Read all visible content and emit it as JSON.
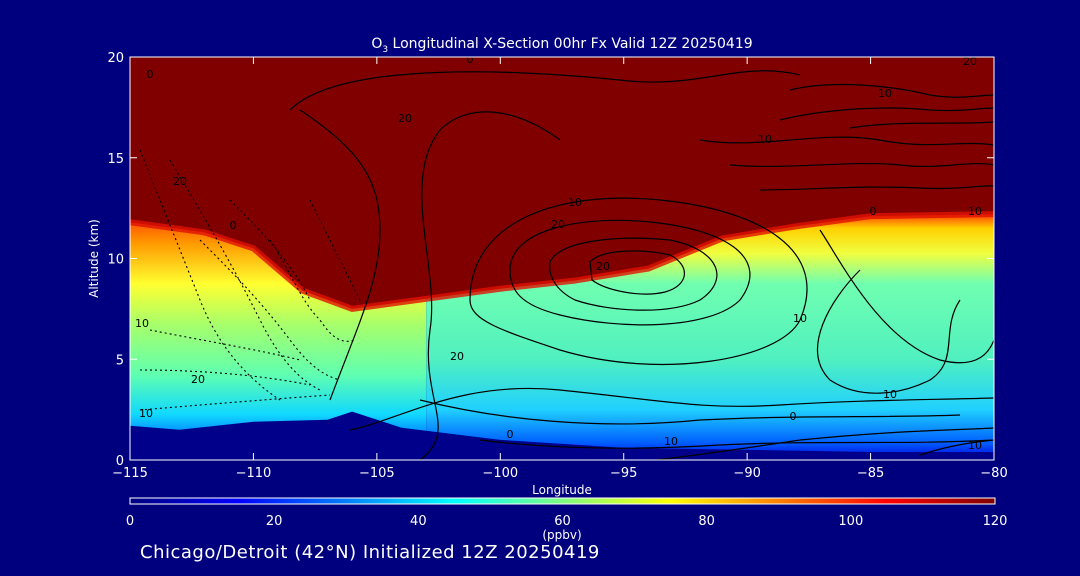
{
  "chart_data": {
    "type": "heatmap",
    "title_prefix": "O",
    "title_subscript": "3",
    "title_rest": " Longitudinal X-Section 00hr  Fx Valid 12Z 20250419",
    "xlabel": "Longitude",
    "ylabel": "Altitude (km)",
    "xlim": [
      -115,
      -80
    ],
    "ylim": [
      0,
      20
    ],
    "x_ticks": [
      -115,
      -110,
      -105,
      -100,
      -95,
      -90,
      -85,
      -80
    ],
    "x_tick_labels": [
      "−115",
      "−110",
      "−105",
      "−100",
      "−95",
      "−90",
      "−85",
      "−80"
    ],
    "y_ticks": [
      0,
      5,
      10,
      15,
      20
    ],
    "y_tick_labels": [
      "0",
      "5",
      "10",
      "15",
      "20"
    ],
    "colorbar": {
      "min": 0,
      "max": 120,
      "ticks": [
        0,
        20,
        40,
        60,
        80,
        100,
        120
      ],
      "tick_labels": [
        "0",
        "20",
        "40",
        "60",
        "80",
        "100",
        "120"
      ],
      "label": "(ppbv)",
      "colors": [
        "#00007f",
        "#0000ff",
        "#0080ff",
        "#00ffff",
        "#80ff80",
        "#ffff00",
        "#ff8000",
        "#ff0000",
        "#7f0000"
      ]
    },
    "field": {
      "surface_km": [
        [
          -115,
          1.7
        ],
        [
          -113,
          1.5
        ],
        [
          -110,
          1.9
        ],
        [
          -107,
          2.0
        ],
        [
          -106,
          2.4
        ],
        [
          -104,
          1.6
        ],
        [
          -100,
          1.0
        ],
        [
          -95,
          0.6
        ],
        [
          -90,
          0.5
        ],
        [
          -85,
          0.4
        ],
        [
          -80,
          0.4
        ]
      ],
      "high_ozone_base_km": [
        [
          -115,
          11.8
        ],
        [
          -112,
          11.3
        ],
        [
          -110,
          10.5
        ],
        [
          -108,
          8.4
        ],
        [
          -106,
          7.5
        ],
        [
          -103,
          8.0
        ],
        [
          -100,
          8.5
        ],
        [
          -97,
          8.9
        ],
        [
          -94,
          9.5
        ],
        [
          -91,
          11.0
        ],
        [
          -88,
          11.6
        ],
        [
          -85,
          12.1
        ],
        [
          -80,
          12.2
        ]
      ]
    },
    "contour_labels": [
      "0",
      "0",
      "10",
      "20",
      "20",
      "10",
      "10",
      "20",
      "20",
      "0",
      "10",
      "20",
      "0",
      "10",
      "10",
      "20",
      "20",
      "10",
      "10",
      "0",
      "0",
      "10",
      "10"
    ]
  },
  "footer": "Chicago/Detroit (42°N) Initialized 12Z 20250419"
}
